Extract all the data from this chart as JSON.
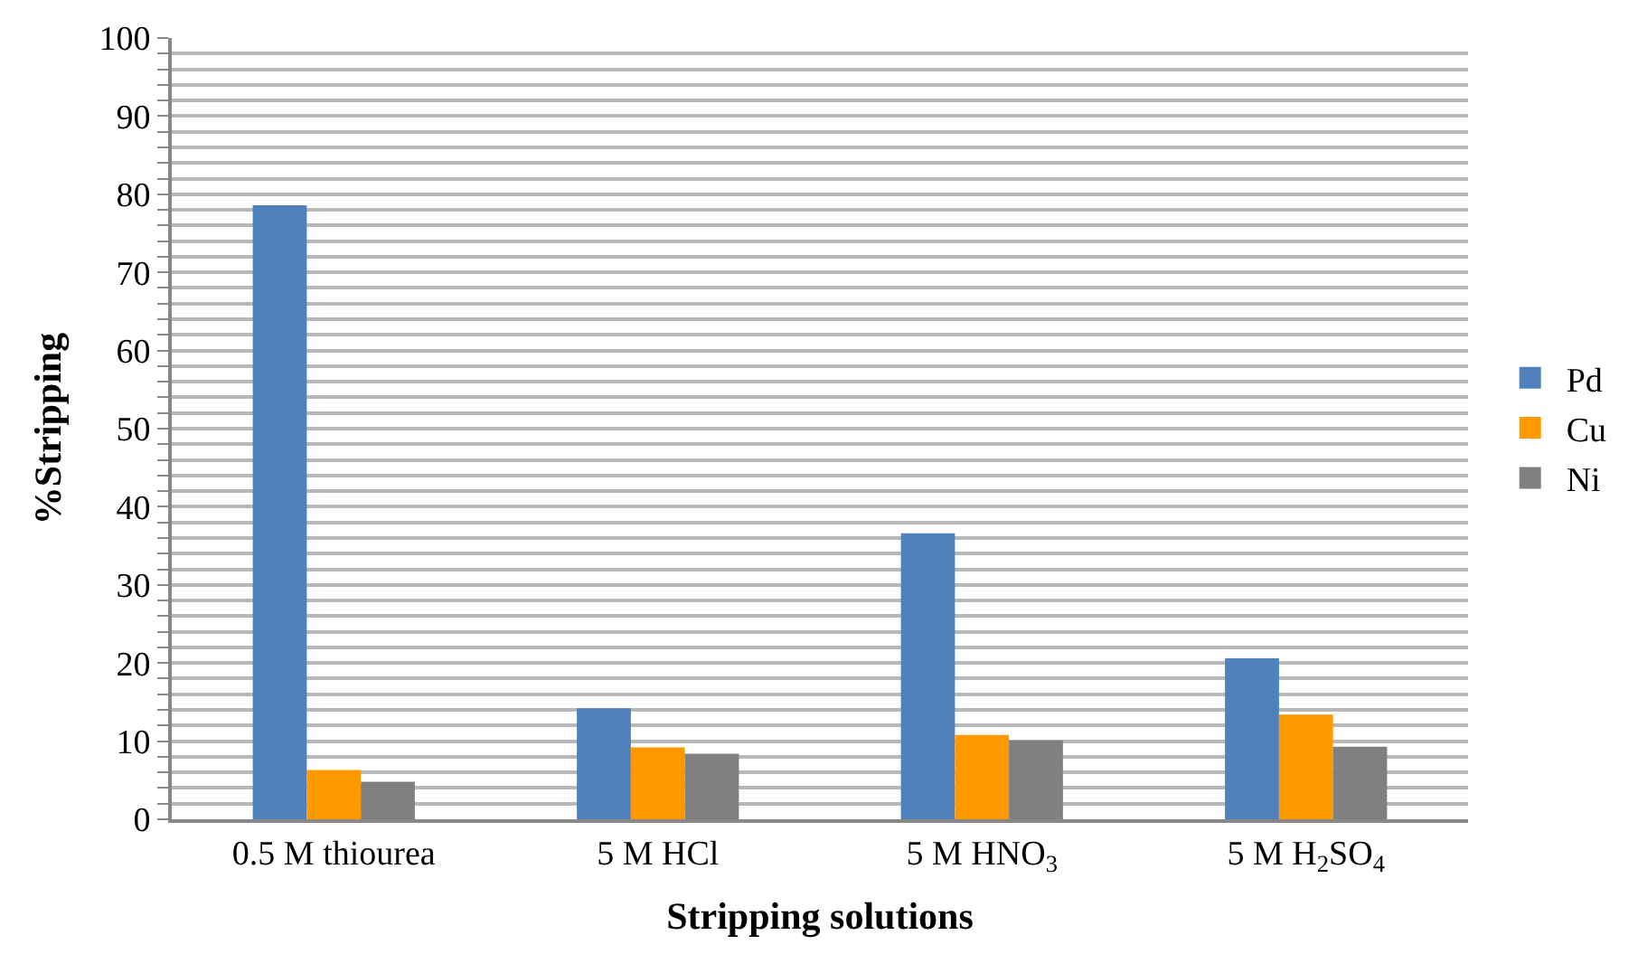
{
  "chart_data": {
    "type": "bar",
    "xlabel": "Stripping solutions",
    "ylabel": "%Stripping",
    "categories": [
      "0.5 M thiourea",
      "5 M HCl",
      "5 M HNO$_{3}$",
      "5 M H$_{2}$SO$_{4}$"
    ],
    "series": [
      {
        "name": "Pd",
        "color": "#4f81bd",
        "values": [
          78.6,
          14.2,
          36.6,
          20.6
        ]
      },
      {
        "name": "Cu",
        "color": "#ff9900",
        "values": [
          6.3,
          9.2,
          10.8,
          13.4
        ]
      },
      {
        "name": "Ni",
        "color": "#808080",
        "values": [
          4.8,
          8.4,
          10.1,
          9.3
        ]
      }
    ],
    "ylim": [
      0,
      100
    ],
    "yticks": [
      0,
      {
        "value": 2,
        "label": null
      },
      {
        "value": 4,
        "label": null
      },
      {
        "value": 6,
        "label": null
      },
      {
        "value": 8,
        "label": null
      },
      10,
      {
        "value": 12,
        "label": null
      },
      {
        "value": 14,
        "label": null
      },
      {
        "value": 16,
        "label": null
      },
      {
        "value": 18,
        "label": null
      },
      20,
      {
        "value": 22,
        "label": null
      },
      {
        "value": 24,
        "label": null
      },
      {
        "value": 26,
        "label": null
      },
      {
        "value": 28,
        "label": null
      },
      30,
      {
        "value": 32,
        "label": null
      },
      {
        "value": 34,
        "label": null
      },
      {
        "value": 36,
        "label": null
      },
      {
        "value": 38,
        "label": null
      },
      40,
      {
        "value": 42,
        "label": null
      },
      {
        "value": 44,
        "label": null
      },
      {
        "value": 46,
        "label": null
      },
      {
        "value": 48,
        "label": null
      },
      50,
      {
        "value": 52,
        "label": null
      },
      {
        "value": 54,
        "label": null
      },
      {
        "value": 56,
        "label": null
      },
      {
        "value": 58,
        "label": null
      },
      60,
      {
        "value": 62,
        "label": null
      },
      {
        "value": 64,
        "label": null
      },
      {
        "value": 66,
        "label": null
      },
      {
        "value": 68,
        "label": null
      },
      70,
      {
        "value": 72,
        "label": null
      },
      {
        "value": 74,
        "label": null
      },
      {
        "value": 76,
        "label": null
      },
      {
        "value": 78,
        "label": null
      },
      80,
      {
        "value": 82,
        "label": null
      },
      {
        "value": 84,
        "label": null
      },
      {
        "value": 86,
        "label": null
      },
      {
        "value": 88,
        "label": null
      },
      90,
      {
        "value": 92,
        "label": null
      },
      {
        "value": 94,
        "label": null
      },
      {
        "value": 96,
        "label": null
      },
      {
        "value": 98,
        "label": null
      },
      100
    ],
    "grid": "y",
    "legend": "right"
  }
}
